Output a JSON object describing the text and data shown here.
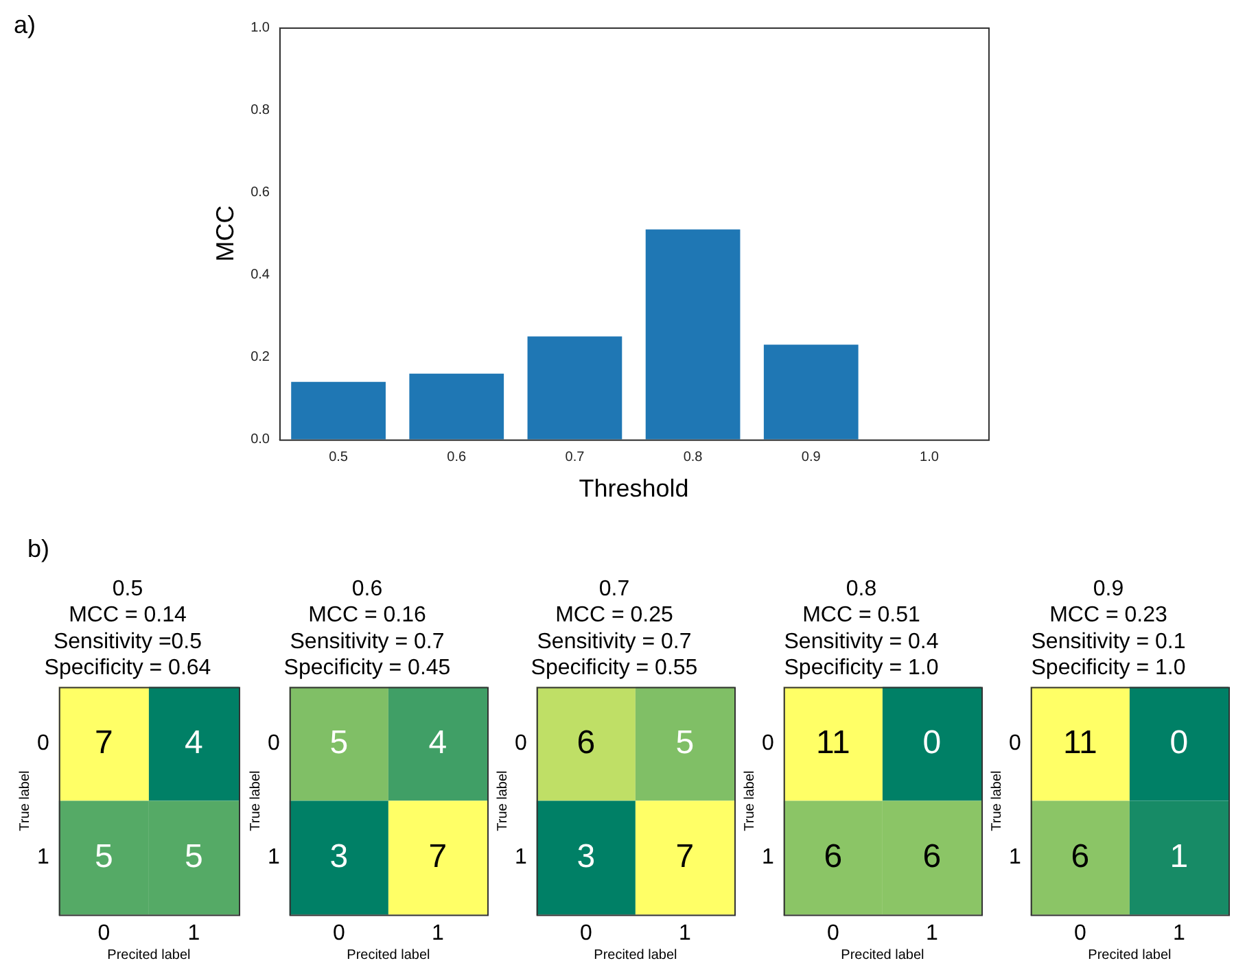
{
  "chart_data": [
    {
      "type": "bar",
      "categories": [
        "0.5",
        "0.6",
        "0.7",
        "0.8",
        "0.9",
        "1.0"
      ],
      "values": [
        0.14,
        0.16,
        0.25,
        0.51,
        0.23,
        0
      ],
      "color": "#1f77b4",
      "xlabel": "Threshold",
      "ylabel": "MCC",
      "ylim": [
        0,
        1
      ],
      "yticks": [
        {
          "value": 0,
          "label": "0.0"
        },
        {
          "value": 0.2,
          "label": "0.2"
        },
        {
          "value": 0.4,
          "label": "0.4"
        },
        {
          "value": 0.6,
          "label": "0.6"
        },
        {
          "value": 0.8,
          "label": "0.8"
        },
        {
          "value": 1,
          "label": "1.0"
        }
      ],
      "grid": false,
      "annotations": [
        "a)"
      ]
    },
    {
      "type": "heatmap",
      "title": "0.5",
      "subtitle": "MCC = 0.14\nSensitivity =0.5\nSpecificity = 0.64",
      "categories": [
        "0",
        "1"
      ],
      "y_categories": [
        "0",
        "1"
      ],
      "cells": [
        [
          7,
          4
        ],
        [
          5,
          5
        ]
      ],
      "data_labels": true,
      "xlabel": "Precited label",
      "ylabel": "True label",
      "annotations": [
        "b)"
      ]
    },
    {
      "type": "heatmap",
      "title": "0.6",
      "subtitle": "MCC = 0.16\nSensitivity = 0.7\nSpecificity = 0.45",
      "categories": [
        "0",
        "1"
      ],
      "y_categories": [
        "0",
        "1"
      ],
      "cells": [
        [
          5,
          4
        ],
        [
          3,
          7
        ]
      ],
      "data_labels": true,
      "xlabel": "Precited label",
      "ylabel": "True label"
    },
    {
      "type": "heatmap",
      "title": "0.7",
      "subtitle": "MCC = 0.25\nSensitivity = 0.7\nSpecificity = 0.55",
      "categories": [
        "0",
        "1"
      ],
      "y_categories": [
        "0",
        "1"
      ],
      "cells": [
        [
          6,
          5
        ],
        [
          3,
          7
        ]
      ],
      "data_labels": true,
      "xlabel": "Precited label",
      "ylabel": "True label"
    },
    {
      "type": "heatmap",
      "title": "0.8",
      "subtitle": "MCC = 0.51\nSensitivity = 0.4\nSpecificity = 1.0",
      "categories": [
        "0",
        "1"
      ],
      "y_categories": [
        "0",
        "1"
      ],
      "cells": [
        [
          11,
          0
        ],
        [
          6,
          6
        ]
      ],
      "data_labels": true,
      "xlabel": "Precited label",
      "ylabel": "True label"
    },
    {
      "type": "heatmap",
      "title": "0.9",
      "subtitle": "MCC = 0.23\nSensitivity = 0.1\nSpecificity = 1.0",
      "categories": [
        "0",
        "1"
      ],
      "y_categories": [
        "0",
        "1"
      ],
      "cells": [
        [
          11,
          0
        ],
        [
          6,
          1
        ]
      ],
      "data_labels": true,
      "xlabel": "Precited label",
      "ylabel": "True label"
    }
  ]
}
